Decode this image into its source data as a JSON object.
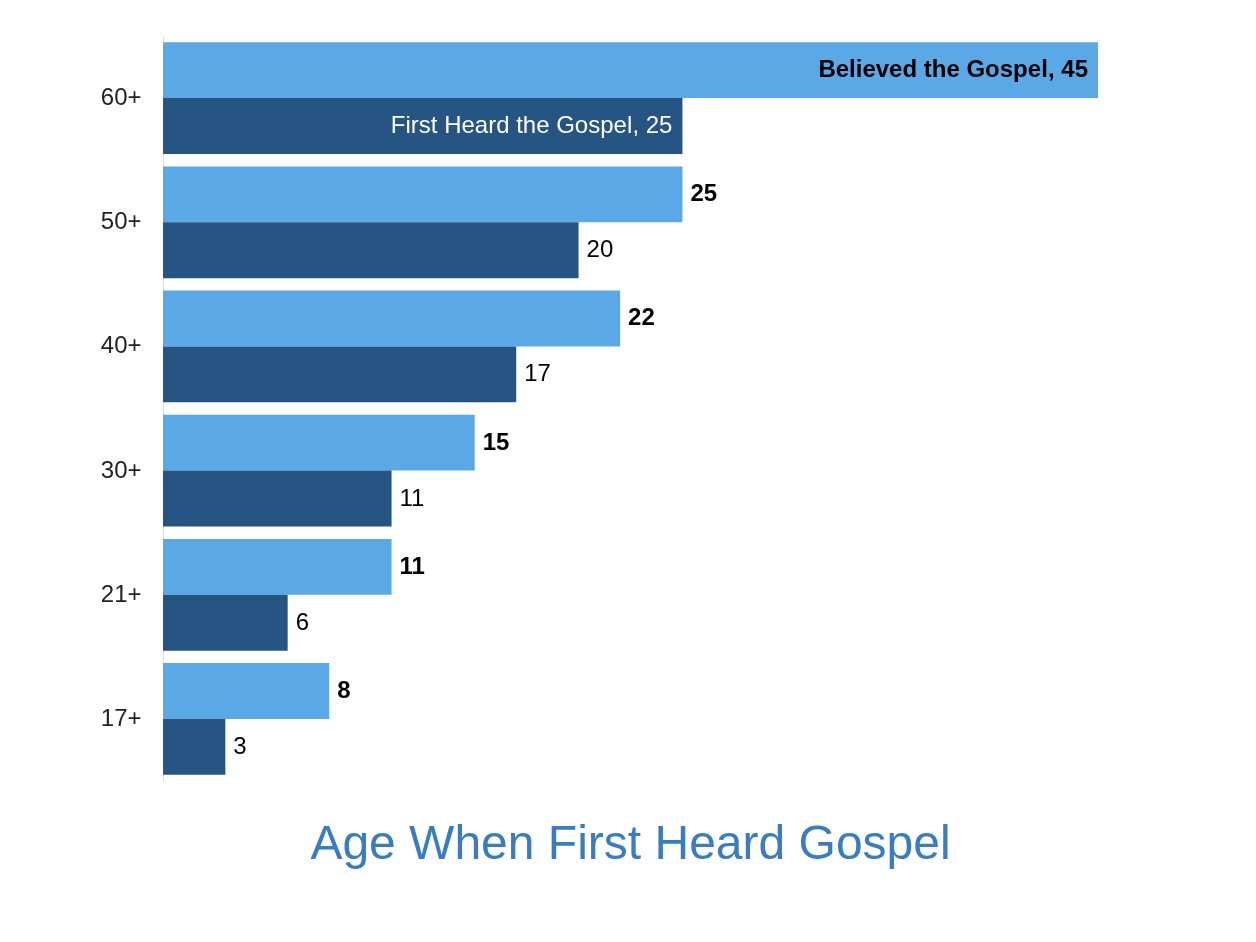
{
  "chart_data": {
    "type": "bar",
    "orientation": "horizontal",
    "title": "Age When First Heard Gospel",
    "categories": [
      "60+",
      "50+",
      "40+",
      "30+",
      "21+",
      "17+"
    ],
    "xlim": [
      0,
      45
    ],
    "tick_labels": "y",
    "legend": false,
    "series": [
      {
        "name": "Believed the Gospel",
        "color": "#5ba8e6",
        "values": [
          45,
          25,
          22,
          15,
          11,
          8
        ],
        "value_labels": [
          ", 45",
          "25",
          "22",
          "15",
          "11",
          "8"
        ]
      },
      {
        "name": "First Heard the Gospel",
        "color": "#265483",
        "values": [
          25,
          20,
          17,
          11,
          6,
          3
        ],
        "value_labels": [
          ", 25",
          "20",
          "17",
          "11",
          "6",
          "3"
        ]
      }
    ]
  }
}
